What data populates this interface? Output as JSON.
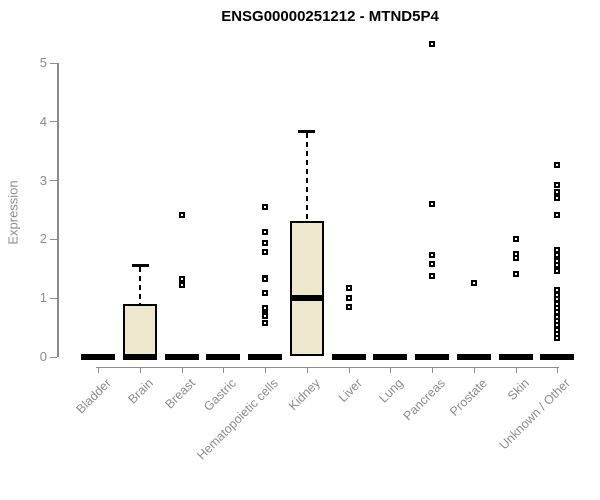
{
  "chart_data": {
    "type": "boxplot",
    "title": "ENSG00000251212 - MTND5P4",
    "ylabel": "Expression",
    "xlabel": "",
    "ylim": [
      0,
      5
    ],
    "yticks": [
      "0",
      "1",
      "2",
      "3",
      "4",
      "5"
    ],
    "grid": false,
    "legend": false,
    "categories": [
      "Bladder",
      "Brain",
      "Breast",
      "Gastric",
      "Hematopoietic cells",
      "Kidney",
      "Liver",
      "Lung",
      "Pancreas",
      "Prostate",
      "Skin",
      "Unknown / Other"
    ],
    "boxes": [
      {
        "category": "Bladder",
        "q1": 0,
        "median": 0,
        "q3": 0,
        "whisker_low": 0,
        "whisker_high": 0
      },
      {
        "category": "Brain",
        "q1": 0,
        "median": 0,
        "q3": 0.9,
        "whisker_low": 0,
        "whisker_high": 1.58
      },
      {
        "category": "Breast",
        "q1": 0,
        "median": 0,
        "q3": 0,
        "whisker_low": 0,
        "whisker_high": 0
      },
      {
        "category": "Gastric",
        "q1": 0,
        "median": 0,
        "q3": 0,
        "whisker_low": 0,
        "whisker_high": 0
      },
      {
        "category": "Hematopoietic cells",
        "q1": 0,
        "median": 0,
        "q3": 0,
        "whisker_low": 0,
        "whisker_high": 0
      },
      {
        "category": "Kidney",
        "q1": 0,
        "median": 1.0,
        "q3": 2.3,
        "whisker_low": 0,
        "whisker_high": 3.85
      },
      {
        "category": "Liver",
        "q1": 0,
        "median": 0,
        "q3": 0,
        "whisker_low": 0,
        "whisker_high": 0
      },
      {
        "category": "Lung",
        "q1": 0,
        "median": 0,
        "q3": 0,
        "whisker_low": 0,
        "whisker_high": 0
      },
      {
        "category": "Pancreas",
        "q1": 0,
        "median": 0,
        "q3": 0,
        "whisker_low": 0,
        "whisker_high": 0
      },
      {
        "category": "Prostate",
        "q1": 0,
        "median": 0,
        "q3": 0,
        "whisker_low": 0,
        "whisker_high": 0
      },
      {
        "category": "Skin",
        "q1": 0,
        "median": 0,
        "q3": 0,
        "whisker_low": 0,
        "whisker_high": 0
      },
      {
        "category": "Unknown / Other",
        "q1": 0,
        "median": 0,
        "q3": 0,
        "whisker_low": 0,
        "whisker_high": 0
      }
    ],
    "outlier_points": {
      "Breast": [
        2.4,
        1.32,
        1.22
      ],
      "Hematopoietic cells": [
        2.54,
        2.11,
        1.93,
        1.77,
        1.34,
        1.31,
        1.08,
        0.82,
        0.72,
        0.69,
        0.57
      ],
      "Liver": [
        1.16,
        0.99,
        0.84
      ],
      "Pancreas": [
        5.32,
        2.6,
        1.72,
        1.57,
        1.37
      ],
      "Prostate": [
        1.25
      ],
      "Skin": [
        2.0,
        1.74,
        1.67,
        1.4
      ],
      "Unknown / Other": [
        3.25,
        2.92,
        2.8,
        2.7,
        2.41,
        1.81,
        1.72,
        1.63,
        1.55,
        1.46,
        1.13,
        1.05,
        0.98,
        0.9,
        0.83,
        0.75,
        0.68,
        0.6,
        0.53,
        0.45,
        0.38,
        0.31
      ]
    },
    "colors": {
      "box_fill": "#EDE7CE",
      "box_border": "#000000",
      "median": "#000000",
      "outlier": "#000000",
      "axis": "#8c8c8c",
      "tick_label": "#8c8c8c",
      "title": "#000000",
      "background": "#ffffff"
    }
  }
}
